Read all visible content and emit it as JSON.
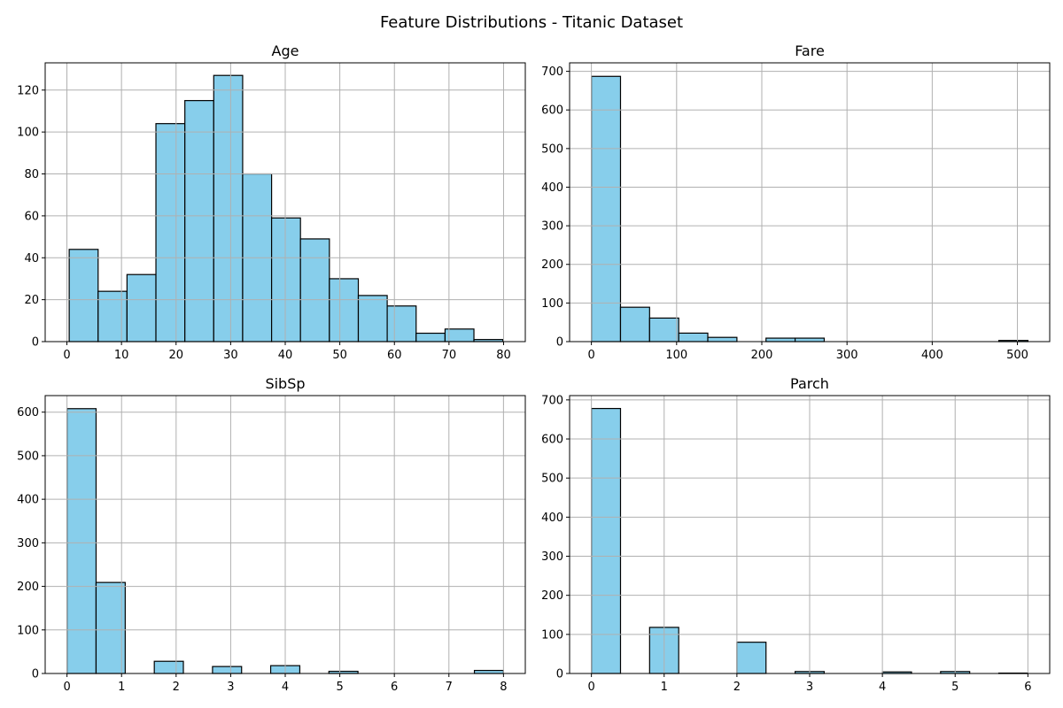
{
  "figure": {
    "title": "Feature Distributions - Titanic Dataset"
  },
  "colors": {
    "bar_fill": "#87ceeb",
    "bar_edge": "#000000",
    "grid": "#b0b0b0",
    "axes": "#000000"
  },
  "chart_data": [
    {
      "type": "bar",
      "title": "Age",
      "xlim": [
        -3.98,
        83.98
      ],
      "ylim": [
        0,
        133
      ],
      "xticks": [
        0,
        10,
        20,
        30,
        40,
        50,
        60,
        70,
        80
      ],
      "yticks": [
        0,
        20,
        40,
        60,
        80,
        100,
        120
      ],
      "grid": true,
      "bins": [
        {
          "x0": 0.42,
          "x1": 5.72,
          "value": 44
        },
        {
          "x0": 5.72,
          "x1": 11.01,
          "value": 24
        },
        {
          "x0": 11.01,
          "x1": 16.31,
          "value": 32
        },
        {
          "x0": 16.31,
          "x1": 21.61,
          "value": 104
        },
        {
          "x0": 21.61,
          "x1": 26.9,
          "value": 115
        },
        {
          "x0": 26.9,
          "x1": 32.2,
          "value": 127
        },
        {
          "x0": 32.2,
          "x1": 37.5,
          "value": 80
        },
        {
          "x0": 37.5,
          "x1": 42.79,
          "value": 59
        },
        {
          "x0": 42.79,
          "x1": 48.09,
          "value": 49
        },
        {
          "x0": 48.09,
          "x1": 53.39,
          "value": 30
        },
        {
          "x0": 53.39,
          "x1": 58.68,
          "value": 22
        },
        {
          "x0": 58.68,
          "x1": 63.98,
          "value": 17
        },
        {
          "x0": 63.98,
          "x1": 69.28,
          "value": 4
        },
        {
          "x0": 69.28,
          "x1": 74.57,
          "value": 6
        },
        {
          "x0": 74.57,
          "x1": 79.87,
          "value": 1
        }
      ]
    },
    {
      "type": "bar",
      "title": "Fare",
      "xlim": [
        -25.6,
        537.9
      ],
      "ylim": [
        0,
        722
      ],
      "xticks": [
        0,
        100,
        200,
        300,
        400,
        500
      ],
      "yticks": [
        0,
        100,
        200,
        300,
        400,
        500,
        600,
        700
      ],
      "grid": true,
      "bins": [
        {
          "x0": 0,
          "x1": 34.16,
          "value": 687
        },
        {
          "x0": 34.16,
          "x1": 68.31,
          "value": 89
        },
        {
          "x0": 68.31,
          "x1": 102.47,
          "value": 61
        },
        {
          "x0": 102.47,
          "x1": 136.62,
          "value": 22
        },
        {
          "x0": 136.62,
          "x1": 170.78,
          "value": 11
        },
        {
          "x0": 170.78,
          "x1": 204.93,
          "value": 0
        },
        {
          "x0": 204.93,
          "x1": 239.09,
          "value": 9
        },
        {
          "x0": 239.09,
          "x1": 273.24,
          "value": 9
        },
        {
          "x0": 273.24,
          "x1": 307.4,
          "value": 0
        },
        {
          "x0": 307.4,
          "x1": 341.55,
          "value": 0
        },
        {
          "x0": 341.55,
          "x1": 375.71,
          "value": 0
        },
        {
          "x0": 375.71,
          "x1": 409.86,
          "value": 0
        },
        {
          "x0": 409.86,
          "x1": 444.02,
          "value": 0
        },
        {
          "x0": 444.02,
          "x1": 478.17,
          "value": 0
        },
        {
          "x0": 478.17,
          "x1": 512.33,
          "value": 3
        }
      ]
    },
    {
      "type": "bar",
      "title": "SibSp",
      "xlim": [
        -0.4,
        8.4
      ],
      "ylim": [
        0,
        638
      ],
      "xticks": [
        0,
        1,
        2,
        3,
        4,
        5,
        6,
        7,
        8
      ],
      "yticks": [
        0,
        100,
        200,
        300,
        400,
        500,
        600
      ],
      "grid": true,
      "bins": [
        {
          "x0": 0,
          "x1": 0.533,
          "value": 608
        },
        {
          "x0": 0.533,
          "x1": 1.067,
          "value": 209
        },
        {
          "x0": 1.067,
          "x1": 1.6,
          "value": 0
        },
        {
          "x0": 1.6,
          "x1": 2.133,
          "value": 28
        },
        {
          "x0": 2.133,
          "x1": 2.667,
          "value": 0
        },
        {
          "x0": 2.667,
          "x1": 3.2,
          "value": 16
        },
        {
          "x0": 3.2,
          "x1": 3.733,
          "value": 0
        },
        {
          "x0": 3.733,
          "x1": 4.267,
          "value": 18
        },
        {
          "x0": 4.267,
          "x1": 4.8,
          "value": 0
        },
        {
          "x0": 4.8,
          "x1": 5.333,
          "value": 5
        },
        {
          "x0": 5.333,
          "x1": 5.867,
          "value": 0
        },
        {
          "x0": 5.867,
          "x1": 6.4,
          "value": 0
        },
        {
          "x0": 6.4,
          "x1": 6.933,
          "value": 0
        },
        {
          "x0": 6.933,
          "x1": 7.467,
          "value": 0
        },
        {
          "x0": 7.467,
          "x1": 8,
          "value": 7
        }
      ]
    },
    {
      "type": "bar",
      "title": "Parch",
      "xlim": [
        -0.3,
        6.3
      ],
      "ylim": [
        0,
        711
      ],
      "xticks": [
        0,
        1,
        2,
        3,
        4,
        5,
        6
      ],
      "yticks": [
        0,
        100,
        200,
        300,
        400,
        500,
        600,
        700
      ],
      "grid": true,
      "bins": [
        {
          "x0": 0,
          "x1": 0.4,
          "value": 678
        },
        {
          "x0": 0.4,
          "x1": 0.8,
          "value": 0
        },
        {
          "x0": 0.8,
          "x1": 1.2,
          "value": 118
        },
        {
          "x0": 1.2,
          "x1": 1.6,
          "value": 0
        },
        {
          "x0": 1.6,
          "x1": 2,
          "value": 0
        },
        {
          "x0": 2,
          "x1": 2.4,
          "value": 80
        },
        {
          "x0": 2.4,
          "x1": 2.8,
          "value": 0
        },
        {
          "x0": 2.8,
          "x1": 3.2,
          "value": 5
        },
        {
          "x0": 3.2,
          "x1": 3.6,
          "value": 0
        },
        {
          "x0": 3.6,
          "x1": 4,
          "value": 0
        },
        {
          "x0": 4,
          "x1": 4.4,
          "value": 4
        },
        {
          "x0": 4.4,
          "x1": 4.8,
          "value": 0
        },
        {
          "x0": 4.8,
          "x1": 5.2,
          "value": 5
        },
        {
          "x0": 5.2,
          "x1": 5.6,
          "value": 0
        },
        {
          "x0": 5.6,
          "x1": 6,
          "value": 1
        }
      ]
    }
  ]
}
